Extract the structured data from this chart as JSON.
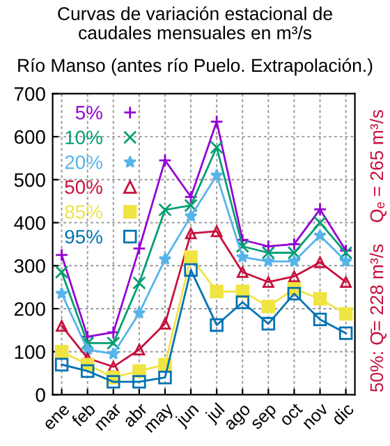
{
  "chart_data": {
    "type": "line",
    "title": "Curvas de variación estacional de\ncaudales mensuales en m³/s",
    "subtitle": "Río Manso (antes río Puelo. Extrapolación.)",
    "categories": [
      "ene",
      "feb",
      "mar",
      "abr",
      "may",
      "jun",
      "jul",
      "ago",
      "sep",
      "oct",
      "nov",
      "dic"
    ],
    "series": [
      {
        "name": "5%",
        "color": "#9400d3",
        "marker": "plus",
        "values": [
          325,
          135,
          145,
          340,
          545,
          460,
          635,
          360,
          345,
          350,
          431,
          335
        ]
      },
      {
        "name": "10%",
        "color": "#009e73",
        "marker": "x",
        "values": [
          285,
          120,
          120,
          260,
          430,
          440,
          575,
          345,
          330,
          330,
          400,
          330
        ]
      },
      {
        "name": "20%",
        "color": "#56b4e9",
        "marker": "star",
        "values": [
          235,
          105,
          95,
          190,
          315,
          415,
          510,
          320,
          310,
          310,
          370,
          310
        ]
      },
      {
        "name": "50%",
        "color": "#c8103c",
        "marker": "triangle",
        "values": [
          160,
          85,
          65,
          105,
          165,
          375,
          380,
          285,
          262,
          275,
          308,
          262
        ]
      },
      {
        "name": "85%",
        "color": "#f0e442",
        "marker": "square",
        "values": [
          100,
          70,
          40,
          55,
          70,
          320,
          240,
          240,
          205,
          246,
          223,
          188
        ]
      },
      {
        "name": "95%",
        "color": "#0072b2",
        "marker": "square",
        "values": [
          70,
          55,
          30,
          30,
          40,
          290,
          162,
          215,
          165,
          235,
          175,
          143
        ]
      }
    ],
    "ylim": [
      0,
      700
    ],
    "yticks": [
      0,
      100,
      200,
      300,
      400,
      500,
      600,
      700
    ],
    "grid": true,
    "legend": "top left",
    "annotations": [
      "50%: Q̄= 228 m³/s",
      "Qₑ = 265 m³/s"
    ]
  }
}
